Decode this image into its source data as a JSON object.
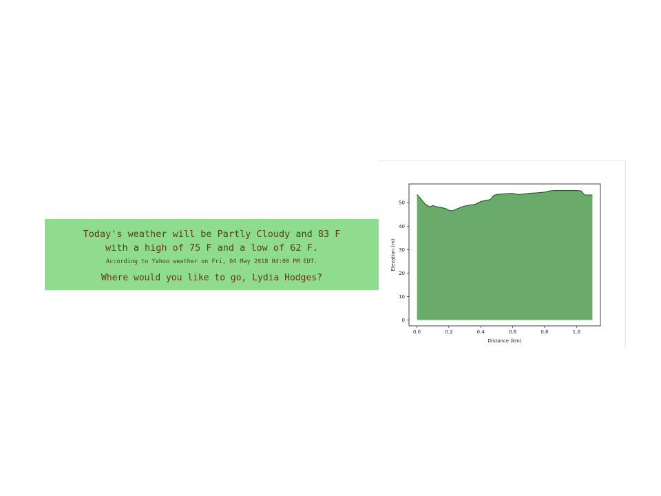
{
  "weather": {
    "line1": "Today's weather will be Partly Cloudy and 83 F",
    "line2": "with a high of 75 F and a low of 62 F.",
    "source": "According to Yahoo weather on Fri, 04 May 2018 04:00 PM EDT.",
    "question": "Where would you like to go, Lydia Hodges?"
  },
  "colors": {
    "panel_bg": "#8fdc8f",
    "text": "#5a3d12",
    "area_fill": "#6aaa6a",
    "area_line": "#1f5a1f"
  },
  "chart_data": {
    "type": "area",
    "title": "",
    "xlabel": "Distance (km)",
    "ylabel": "Elevation (m)",
    "xlim": [
      -0.05,
      1.15
    ],
    "ylim": [
      -2.5,
      58
    ],
    "xticks": [
      0.0,
      0.2,
      0.4,
      0.6,
      0.8,
      1.0
    ],
    "xtick_labels": [
      "0.0",
      "0.2",
      "0.4",
      "0.6",
      "0.8",
      "1.0"
    ],
    "yticks": [
      0,
      10,
      20,
      30,
      40,
      50
    ],
    "ytick_labels": [
      "0",
      "10",
      "20",
      "30",
      "40",
      "50"
    ],
    "grid": false,
    "x": [
      0.0,
      0.02,
      0.05,
      0.08,
      0.1,
      0.12,
      0.15,
      0.18,
      0.2,
      0.22,
      0.25,
      0.28,
      0.3,
      0.33,
      0.36,
      0.38,
      0.4,
      0.43,
      0.46,
      0.48,
      0.5,
      0.55,
      0.6,
      0.63,
      0.66,
      0.7,
      0.75,
      0.8,
      0.83,
      0.86,
      0.9,
      0.95,
      1.0,
      1.03,
      1.05,
      1.08,
      1.1
    ],
    "y": [
      53.5,
      52.0,
      49.5,
      48.2,
      48.8,
      48.3,
      48.0,
      47.5,
      46.8,
      46.5,
      47.3,
      48.2,
      48.6,
      49.0,
      49.2,
      49.8,
      50.5,
      51.0,
      51.3,
      53.0,
      53.5,
      53.8,
      54.0,
      53.5,
      53.6,
      54.0,
      54.2,
      54.5,
      55.0,
      55.2,
      55.2,
      55.2,
      55.2,
      55.0,
      53.3,
      53.3,
      53.3
    ]
  }
}
